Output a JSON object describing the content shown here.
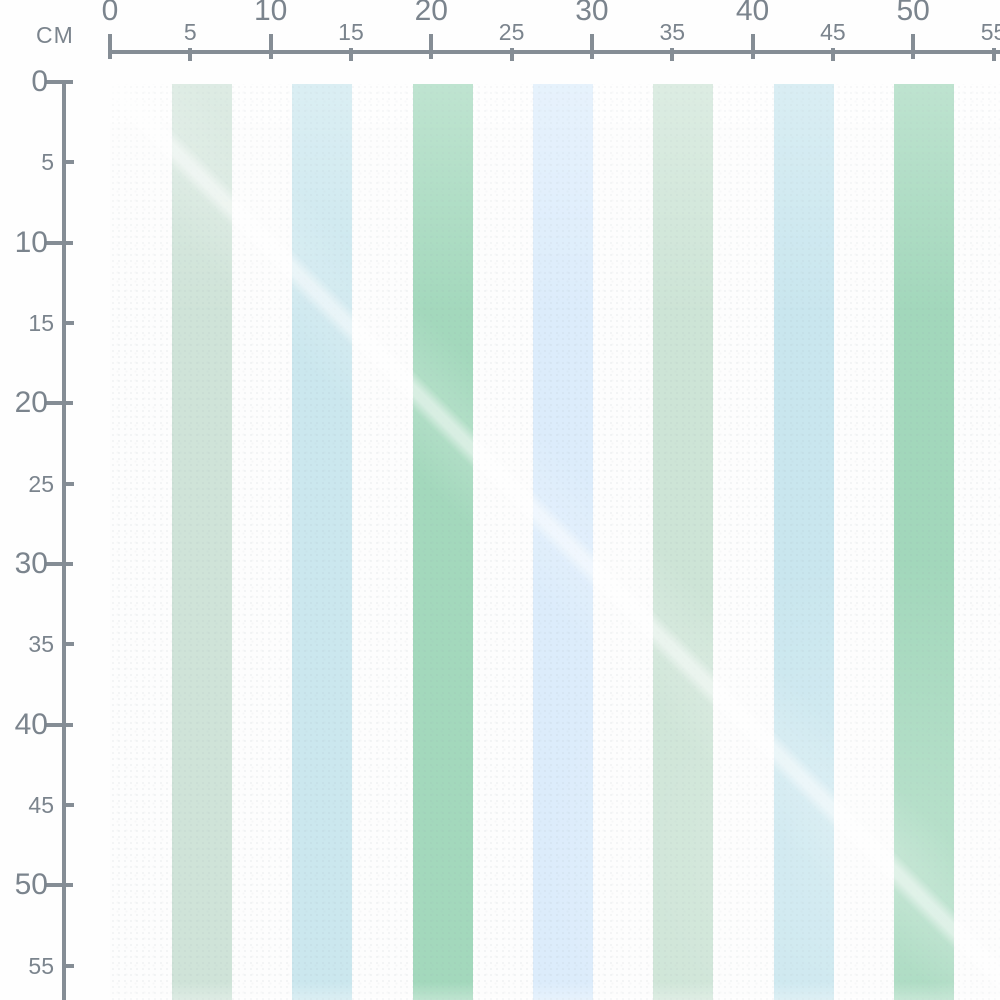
{
  "rulers": {
    "unit": "CM",
    "horizontal": {
      "values": [
        0,
        5,
        10,
        15,
        20,
        25,
        30,
        35,
        40,
        45,
        50,
        55
      ]
    },
    "vertical": {
      "values": [
        0,
        5,
        10,
        15,
        20,
        25,
        30,
        35,
        40,
        45,
        50,
        55
      ]
    }
  },
  "colors": {
    "ruler_line": "#858d95",
    "ruler_text": "#7b848d",
    "background": "#fdfdfd"
  },
  "fabric": {
    "stripes": [
      {
        "name": "sage-green",
        "color": "#cfe3d8"
      },
      {
        "name": "pale-cyan",
        "color": "#cbe7ee"
      },
      {
        "name": "mint-green",
        "color": "#a3d8bc"
      },
      {
        "name": "pale-blue",
        "color": "#dcecfb"
      },
      {
        "name": "sage-green",
        "color": "#cde4d6"
      },
      {
        "name": "pale-cyan",
        "color": "#c9e6ee"
      },
      {
        "name": "mint-green",
        "color": "#a2d7bb"
      }
    ]
  }
}
